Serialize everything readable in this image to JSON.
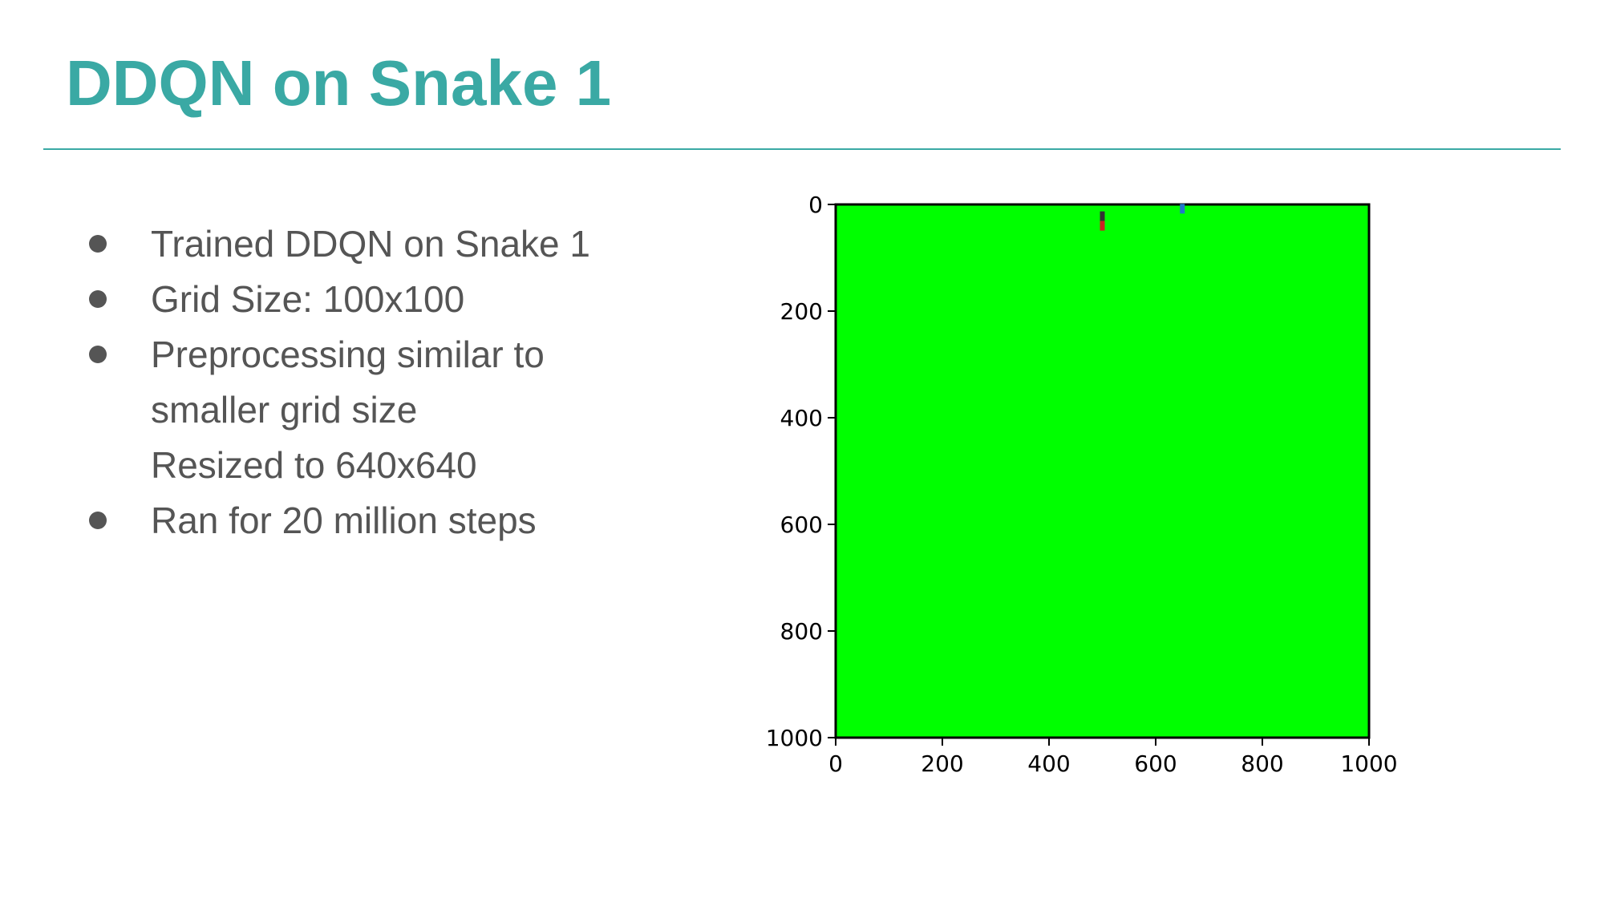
{
  "slide": {
    "title": "DDQN on Snake 1",
    "accent_color": "#3aa9a4",
    "text_color": "#555555"
  },
  "bullets": [
    {
      "lines": [
        "Trained DDQN on Snake 1"
      ],
      "has_bullet": true
    },
    {
      "lines": [
        "Grid Size: 100x100"
      ],
      "has_bullet": true
    },
    {
      "lines": [
        "Preprocessing similar to",
        "smaller grid size"
      ],
      "has_bullet": true
    },
    {
      "lines": [
        "Resized to 640x640"
      ],
      "has_bullet": false
    },
    {
      "lines": [
        "Ran for 20 million steps"
      ],
      "has_bullet": true
    }
  ],
  "figure": {
    "type": "image-plot",
    "background_color": "#00ff00",
    "x_ticks": [
      "0",
      "200",
      "400",
      "600",
      "800",
      "1000"
    ],
    "y_ticks": [
      "0",
      "200",
      "400",
      "600",
      "800",
      "1000"
    ],
    "xlim": [
      0,
      1000
    ],
    "ylim": [
      0,
      1000
    ],
    "y_inverted": true,
    "markers": [
      {
        "name": "snake-head-marker",
        "x": 500,
        "y": 22,
        "color": "#333333"
      },
      {
        "name": "snake-body-marker",
        "x": 500,
        "y": 40,
        "color": "#cc2222"
      },
      {
        "name": "food-marker",
        "x": 650,
        "y": 8,
        "color": "#2277cc"
      }
    ]
  }
}
